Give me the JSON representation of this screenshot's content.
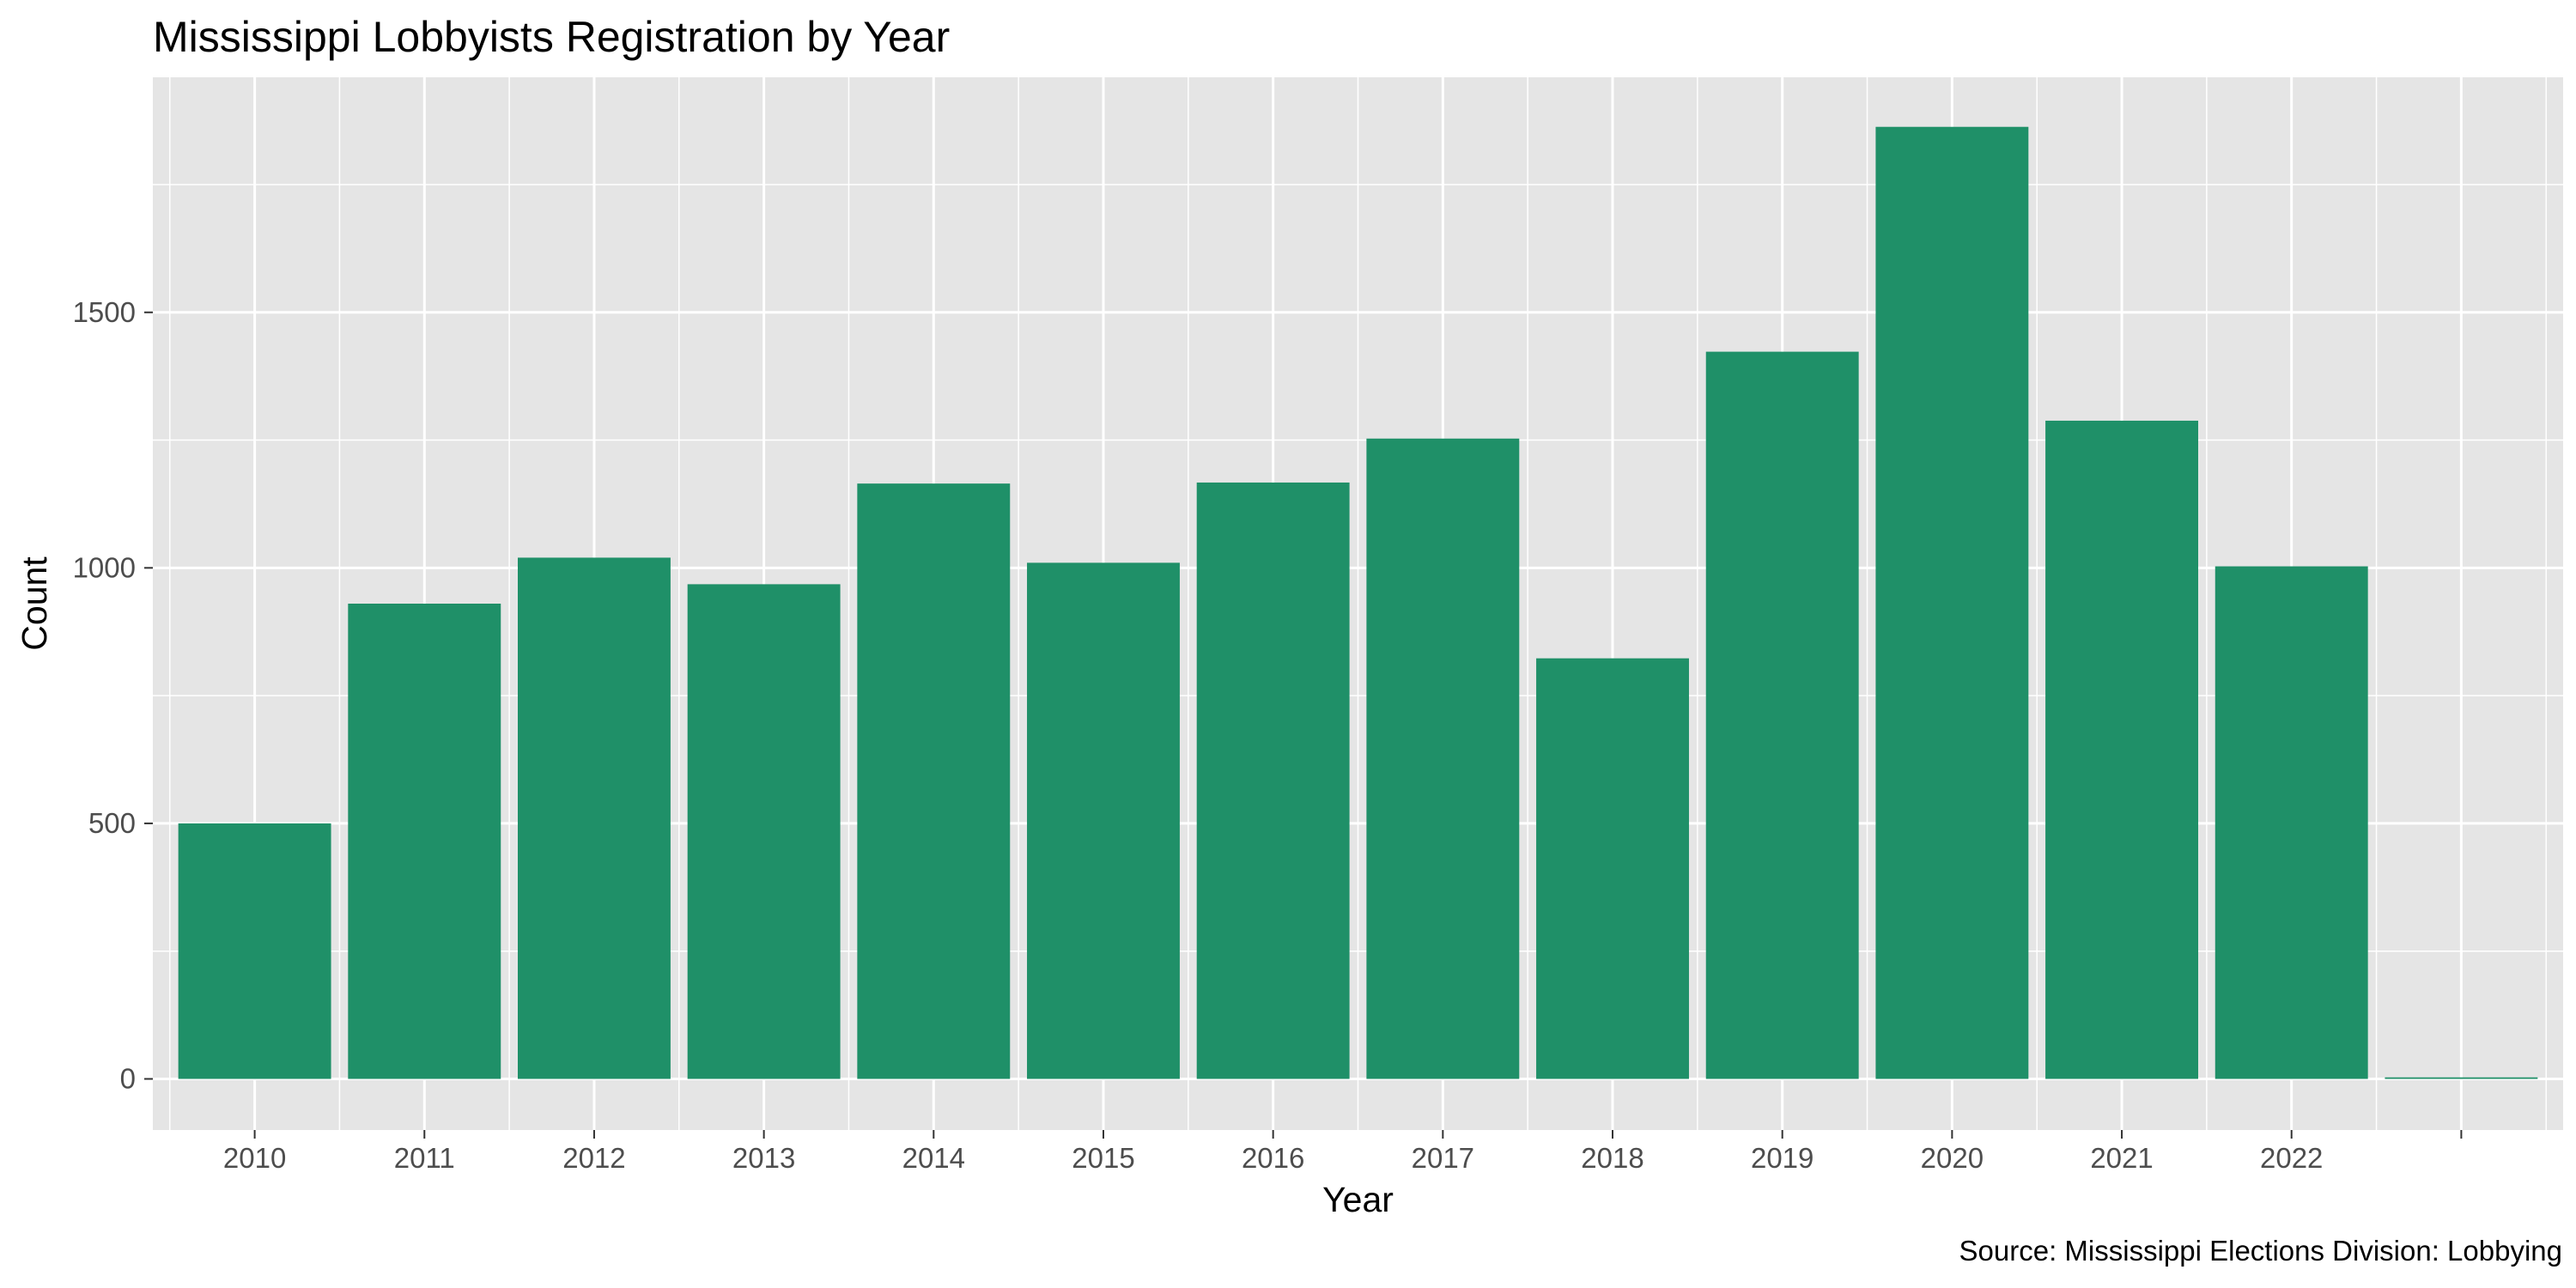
{
  "chart_data": {
    "type": "bar",
    "title": "Mississippi Lobbyists Registration by Year",
    "caption": "Source: Mississippi Elections Division: Lobbying",
    "xlabel": "Year",
    "ylabel": "Count",
    "categories": [
      "2010",
      "2011",
      "2012",
      "2013",
      "2014",
      "2015",
      "2016",
      "2017",
      "2018",
      "2019",
      "2020",
      "2021",
      "2022",
      ""
    ],
    "values": [
      500,
      930,
      1020,
      968,
      1165,
      1010,
      1167,
      1253,
      823,
      1423,
      1863,
      1288,
      1003,
      3
    ],
    "yticks": [
      0,
      500,
      1000,
      1500
    ],
    "ylim": [
      -100,
      1960
    ],
    "grid": true,
    "bar_color": "#1f9068",
    "panel_color": "#e5e5e5",
    "grid_color": "#ffffff"
  }
}
